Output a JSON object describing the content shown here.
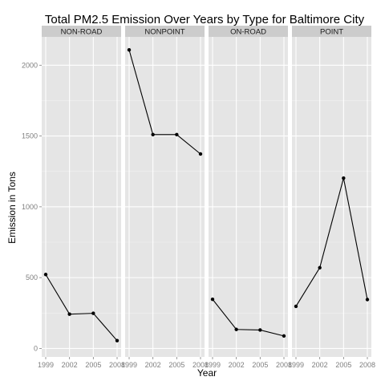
{
  "chart_data": {
    "type": "line",
    "title": "Total PM2.5 Emission Over Years by Type for Baltimore City",
    "xlabel": "Year",
    "ylabel": "Emission in Tons",
    "x": [
      1999,
      2002,
      2005,
      2008
    ],
    "xticks": [
      "1999",
      "2002",
      "2005",
      "2008"
    ],
    "yticks": [
      "0",
      "500",
      "1000",
      "1500",
      "2000"
    ],
    "ylim": [
      -60,
      2200
    ],
    "grid": true,
    "panels": [
      {
        "name": "NON-ROAD",
        "values": [
          522,
          242,
          248,
          55
        ]
      },
      {
        "name": "NONPOINT",
        "values": [
          2108,
          1510,
          1510,
          1373
        ]
      },
      {
        "name": "ON-ROAD",
        "values": [
          347,
          134,
          130,
          88
        ]
      },
      {
        "name": "POINT",
        "values": [
          297,
          570,
          1203,
          345
        ]
      }
    ]
  }
}
